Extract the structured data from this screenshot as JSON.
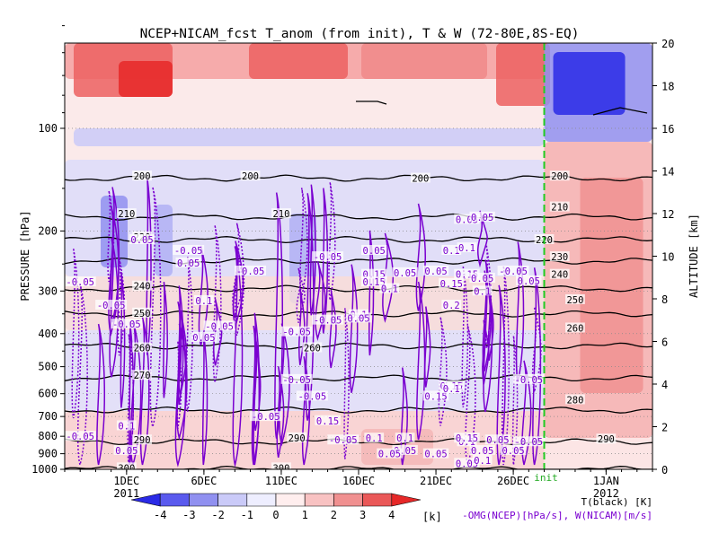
{
  "chart_data": {
    "type": "heatmap",
    "title": "NCEP+NICAM_fcst T_anom (from init), T & W  (72-80E,8S-EQ)",
    "ylabel_left": "PRESSURE [hPa]",
    "ylabel_right": "ALTITUDE [km]",
    "pressure_ticks": [
      100,
      200,
      300,
      400,
      500,
      600,
      700,
      800,
      900,
      1000
    ],
    "pressure_range": [
      1000,
      40
    ],
    "altitude_ticks": [
      0,
      2,
      4,
      6,
      8,
      10,
      12,
      14,
      16,
      18,
      20
    ],
    "altitude_range": [
      0,
      20
    ],
    "x_range_days": [
      "2011-11-27",
      "2012-01-04"
    ],
    "x_ticks": [
      {
        "label": "1DEC",
        "date": "2011-12-01"
      },
      {
        "label": "6DEC",
        "date": "2011-12-06"
      },
      {
        "label": "11DEC",
        "date": "2011-12-11"
      },
      {
        "label": "16DEC",
        "date": "2011-12-16"
      },
      {
        "label": "21DEC",
        "date": "2011-12-21"
      },
      {
        "label": "26DEC",
        "date": "2011-12-26"
      },
      {
        "label": "1JAN",
        "date": "2012-01-01"
      }
    ],
    "year_labels": [
      {
        "label": "2011",
        "date": "2011-12-01"
      },
      {
        "label": "2012",
        "date": "2012-01-01"
      }
    ],
    "init_line": {
      "label": "init",
      "date": "2011-12-28",
      "color": "#22cc22"
    },
    "colorbar": {
      "ticks": [
        "-4",
        "-3",
        "-2",
        "-1",
        "0",
        "1",
        "2",
        "3",
        "4"
      ],
      "unit": "[k]",
      "colors": [
        "#2a2ae6",
        "#5a5aee",
        "#9090f0",
        "#cacaf8",
        "#eeeeff",
        "#ffeeee",
        "#f8c2c2",
        "#f09090",
        "#ea5858",
        "#e62828"
      ]
    },
    "legend": {
      "black_label": "T(black) [K]",
      "purple_label": "-OMG(NCEP)[hPa/s], W(NICAM)[m/s]",
      "purple_color": "#7a00d0"
    },
    "temperature_contours": [
      {
        "label": "300",
        "p": 1000
      },
      {
        "label": "290",
        "p": 830
      },
      {
        "label": "280",
        "p": 670
      },
      {
        "label": "270",
        "p": 540
      },
      {
        "label": "260",
        "p": 435
      },
      {
        "label": "250",
        "p": 350
      },
      {
        "label": "240",
        "p": 295
      },
      {
        "label": "230",
        "p": 245
      },
      {
        "label": "220",
        "p": 212
      },
      {
        "label": "210",
        "p": 182
      },
      {
        "label": "200",
        "p": 140
      }
    ],
    "contour_labels": [
      {
        "text": "200",
        "date": "2011-12-02",
        "p": 138
      },
      {
        "text": "200",
        "date": "2011-12-09",
        "p": 138
      },
      {
        "text": "200",
        "date": "2011-12-20",
        "p": 140
      },
      {
        "text": "200",
        "date": "2011-12-29",
        "p": 138
      },
      {
        "text": "200",
        "date": "2011-12-29",
        "p": 48
      },
      {
        "text": "210",
        "date": "2011-12-01",
        "p": 178
      },
      {
        "text": "210",
        "date": "2011-12-11",
        "p": 178
      },
      {
        "text": "210",
        "date": "2011-12-29",
        "p": 170
      },
      {
        "text": "220",
        "date": "2011-12-02",
        "p": 208
      },
      {
        "text": "220",
        "date": "2011-12-28",
        "p": 212
      },
      {
        "text": "230",
        "date": "2011-12-29",
        "p": 238
      },
      {
        "text": "240",
        "date": "2011-12-02",
        "p": 290
      },
      {
        "text": "240",
        "date": "2011-12-29",
        "p": 268
      },
      {
        "text": "250",
        "date": "2011-12-02",
        "p": 348
      },
      {
        "text": "250",
        "date": "2011-12-30",
        "p": 318
      },
      {
        "text": "260",
        "date": "2011-12-02",
        "p": 440
      },
      {
        "text": "260",
        "date": "2011-12-13",
        "p": 440
      },
      {
        "text": "260",
        "date": "2011-12-30",
        "p": 385
      },
      {
        "text": "270",
        "date": "2011-12-02",
        "p": 530
      },
      {
        "text": "280",
        "date": "2011-12-30",
        "p": 625
      },
      {
        "text": "290",
        "date": "2011-12-02",
        "p": 820
      },
      {
        "text": "290",
        "date": "2011-12-12",
        "p": 808
      },
      {
        "text": "290",
        "date": "2012-01-01",
        "p": 815
      },
      {
        "text": "300",
        "date": "2011-12-01",
        "p": 990
      },
      {
        "text": "300",
        "date": "2011-12-11",
        "p": 990
      },
      {
        "text": "0.05",
        "date": "2011-12-02",
        "p": 212
      },
      {
        "text": "0.05",
        "date": "2011-12-05",
        "p": 248
      },
      {
        "text": "-0.05",
        "date": "2011-12-05",
        "p": 228
      },
      {
        "text": "-0.05",
        "date": "2011-12-09",
        "p": 262
      },
      {
        "text": "-0.05",
        "date": "2011-11-28",
        "p": 282
      },
      {
        "text": "-0.05",
        "date": "2011-11-30",
        "p": 330
      },
      {
        "text": "-0.05",
        "date": "2011-12-01",
        "p": 375
      },
      {
        "text": "0.1",
        "date": "2011-12-06",
        "p": 320
      },
      {
        "text": "-0.05",
        "date": "2011-12-07",
        "p": 380
      },
      {
        "text": "0.05",
        "date": "2011-12-06",
        "p": 410
      },
      {
        "text": "-0.05",
        "date": "2011-12-12",
        "p": 395
      },
      {
        "text": "-0.05",
        "date": "2011-12-14",
        "p": 238
      },
      {
        "text": "-0.05",
        "date": "2011-12-14",
        "p": 365
      },
      {
        "text": "0.05",
        "date": "2011-12-17",
        "p": 228
      },
      {
        "text": "0.15",
        "date": "2011-12-17",
        "p": 268
      },
      {
        "text": "0.15",
        "date": "2011-12-17",
        "p": 282
      },
      {
        "text": "0.1",
        "date": "2011-12-18",
        "p": 295
      },
      {
        "text": "0.1",
        "date": "2011-12-16",
        "p": 352
      },
      {
        "text": "0.05",
        "date": "2011-12-16",
        "p": 360
      },
      {
        "text": "0.05",
        "date": "2011-12-19",
        "p": 265
      },
      {
        "text": "0.05",
        "date": "2011-12-21",
        "p": 262
      },
      {
        "text": "0.15",
        "date": "2011-12-22",
        "p": 285
      },
      {
        "text": "0.2",
        "date": "2011-12-22",
        "p": 330
      },
      {
        "text": "0.1",
        "date": "2011-12-22",
        "p": 228
      },
      {
        "text": "0.1",
        "date": "2011-12-23",
        "p": 224
      },
      {
        "text": "0.15",
        "date": "2011-12-23",
        "p": 268
      },
      {
        "text": "0.05",
        "date": "2011-12-23",
        "p": 185
      },
      {
        "text": "0.05",
        "date": "2011-12-24",
        "p": 182
      },
      {
        "text": "-0.05",
        "date": "2011-12-26",
        "p": 262
      },
      {
        "text": "0.05",
        "date": "2011-12-24",
        "p": 275
      },
      {
        "text": "0.1",
        "date": "2011-12-24",
        "p": 300
      },
      {
        "text": "0.15",
        "date": "2011-12-21",
        "p": 610
      },
      {
        "text": "0.15",
        "date": "2011-12-22",
        "p": 570
      },
      {
        "text": "0.1",
        "date": "2011-12-22",
        "p": 580
      },
      {
        "text": "0.15",
        "date": "2011-12-14",
        "p": 720
      },
      {
        "text": "0.1",
        "date": "2011-12-17",
        "p": 810
      },
      {
        "text": "0.1",
        "date": "2011-12-19",
        "p": 810
      },
      {
        "text": "0.05",
        "date": "2011-12-19",
        "p": 880
      },
      {
        "text": "0.05",
        "date": "2011-12-21",
        "p": 900
      },
      {
        "text": "0.1",
        "date": "2011-12-23",
        "p": 830
      },
      {
        "text": "0.15",
        "date": "2011-12-23",
        "p": 810
      },
      {
        "text": "0.05",
        "date": "2011-12-24",
        "p": 880
      },
      {
        "text": "0.05",
        "date": "2011-12-25",
        "p": 820
      },
      {
        "text": "0.05",
        "date": "2011-12-26",
        "p": 880
      },
      {
        "text": "0.05",
        "date": "2011-12-23",
        "p": 960
      },
      {
        "text": "0.1",
        "date": "2011-12-24",
        "p": 940
      },
      {
        "text": "-0.05",
        "date": "2011-12-27",
        "p": 830
      },
      {
        "text": "-0.05",
        "date": "2011-12-27",
        "p": 545
      },
      {
        "text": "-0.05",
        "date": "2011-11-28",
        "p": 800
      },
      {
        "text": "0.1",
        "date": "2011-12-01",
        "p": 745
      },
      {
        "text": "0.05",
        "date": "2011-12-01",
        "p": 880
      },
      {
        "text": "-0.05",
        "date": "2011-12-10",
        "p": 700
      },
      {
        "text": "-0.05",
        "date": "2011-12-13",
        "p": 610
      },
      {
        "text": "-0.05",
        "date": "2011-12-12",
        "p": 545
      },
      {
        "text": "-0.05",
        "date": "2011-12-15",
        "p": 820
      },
      {
        "text": "0.05",
        "date": "2011-12-18",
        "p": 900
      },
      {
        "text": "0.05",
        "date": "2011-12-27",
        "p": 280
      }
    ]
  }
}
